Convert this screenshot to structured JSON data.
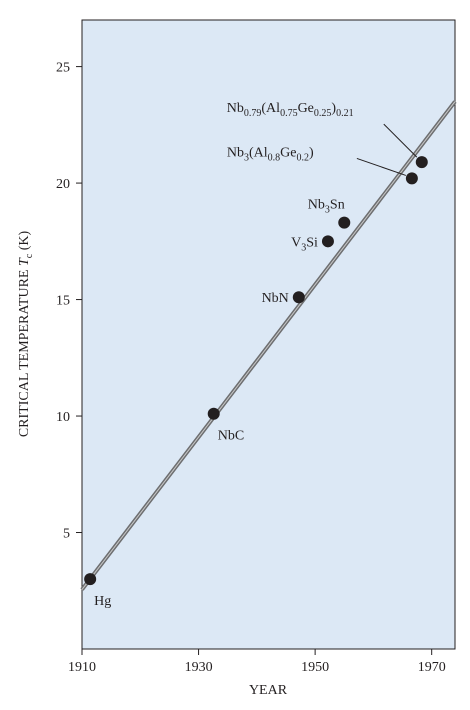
{
  "chart_data": {
    "type": "scatter",
    "x_label": "YEAR",
    "y_label": [
      {
        "t": "CRITICAL TEMPERATURE "
      },
      {
        "i": "T"
      },
      {
        "s": "c"
      },
      {
        "t": " (K)"
      }
    ],
    "xlim": [
      1910,
      1974
    ],
    "xticks": [
      1910,
      1930,
      1950,
      1970
    ],
    "ylim": [
      0,
      27
    ],
    "yticks": [
      5,
      10,
      15,
      20,
      25
    ],
    "color": "#231f20",
    "background": "#dce8f5",
    "points": [
      {
        "x": 1911.4,
        "y": 3.0,
        "label": [
          {
            "t": "Hg"
          }
        ]
      },
      {
        "x": 1932.6,
        "y": 10.1,
        "label": [
          {
            "t": "NbC"
          }
        ]
      },
      {
        "x": 1947.2,
        "y": 15.1,
        "label": [
          {
            "t": "NbN"
          }
        ]
      },
      {
        "x": 1952.2,
        "y": 17.5,
        "label": [
          {
            "t": "V"
          },
          {
            "s": "3"
          },
          {
            "t": "Si"
          }
        ]
      },
      {
        "x": 1955.0,
        "y": 18.3,
        "label": [
          {
            "t": "Nb"
          },
          {
            "s": "3"
          },
          {
            "t": "Sn"
          }
        ]
      },
      {
        "x": 1966.6,
        "y": 20.2,
        "label": [
          {
            "t": "Nb"
          },
          {
            "s": "3"
          },
          {
            "t": "(Al"
          },
          {
            "s": "0.8"
          },
          {
            "t": "Ge"
          },
          {
            "s": "0.2"
          },
          {
            "t": ")"
          }
        ]
      },
      {
        "x": 1968.3,
        "y": 20.9,
        "label": [
          {
            "t": "Nb"
          },
          {
            "s": "0.79"
          },
          {
            "t": "(Al"
          },
          {
            "s": "0.75"
          },
          {
            "t": "Ge"
          },
          {
            "s": "0.25"
          },
          {
            "t": ")"
          },
          {
            "s": "0.21"
          }
        ]
      }
    ],
    "trend": {
      "x": [
        1910,
        1974
      ],
      "values": [
        2.55,
        23.5
      ],
      "color": "#6d6e70"
    }
  }
}
